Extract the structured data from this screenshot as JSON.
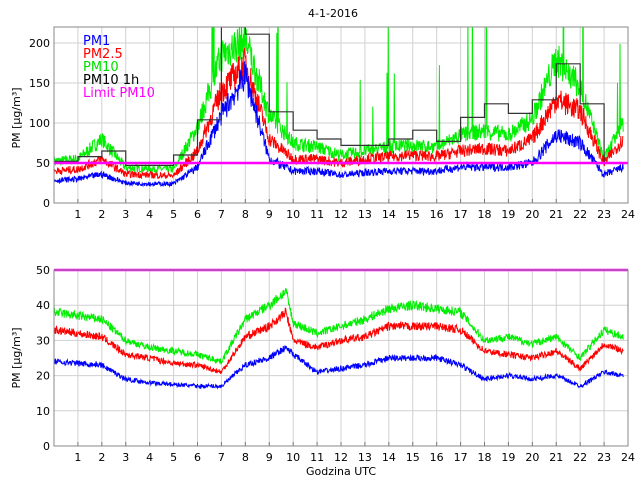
{
  "chart_data": [
    {
      "type": "line",
      "title": "4-1-2016",
      "xlabel": "",
      "ylabel": "PM [µg/m³]",
      "xlim": [
        0,
        24
      ],
      "ylim": [
        0,
        220
      ],
      "xticks": [
        1,
        2,
        3,
        4,
        5,
        6,
        7,
        8,
        9,
        10,
        11,
        12,
        13,
        14,
        15,
        16,
        17,
        18,
        19,
        20,
        21,
        22,
        23,
        24
      ],
      "yticks": [
        0,
        50,
        100,
        150,
        200
      ],
      "grid": true,
      "legend_position": "top-left",
      "legend": [
        "PM1",
        "PM2.5",
        "PM10",
        "PM10 1h",
        "Limit PM10"
      ],
      "colors": {
        "PM1": "#0000ff",
        "PM2.5": "#ff0000",
        "PM10": "#00ee00",
        "PM10 1h": "#000000",
        "Limit PM10": "#ff00ff"
      },
      "hours": [
        0,
        1,
        2,
        3,
        4,
        5,
        6,
        7,
        8,
        9,
        10,
        11,
        12,
        13,
        14,
        15,
        16,
        17,
        18,
        19,
        20,
        21,
        22,
        23,
        23.8
      ],
      "series": [
        {
          "name": "PM1",
          "values": [
            28,
            30,
            36,
            25,
            24,
            24,
            45,
            110,
            160,
            55,
            40,
            40,
            35,
            38,
            40,
            40,
            40,
            45,
            45,
            45,
            50,
            85,
            75,
            35,
            45
          ]
        },
        {
          "name": "PM2.5",
          "values": [
            40,
            42,
            55,
            36,
            35,
            34,
            65,
            140,
            175,
            80,
            55,
            55,
            50,
            55,
            58,
            60,
            58,
            65,
            68,
            65,
            80,
            130,
            115,
            50,
            80
          ]
        },
        {
          "name": "PM10",
          "values": [
            52,
            55,
            80,
            44,
            43,
            42,
            95,
            185,
            205,
            110,
            75,
            70,
            60,
            65,
            70,
            72,
            70,
            85,
            90,
            85,
            105,
            180,
            145,
            55,
            100
          ]
        }
      ],
      "hourly_PM10_1h": [
        52,
        58,
        65,
        47,
        47,
        60,
        104,
        220,
        211,
        114,
        91,
        80,
        72,
        72,
        80,
        91,
        77,
        107,
        124,
        112,
        129,
        174,
        124,
        50
      ],
      "limit_PM10": 50
    },
    {
      "type": "line",
      "title": "",
      "xlabel": "Godzina UTC",
      "ylabel": "PM [µg/m³]",
      "xlim": [
        0,
        24
      ],
      "ylim": [
        0,
        50
      ],
      "xticks": [
        1,
        2,
        3,
        4,
        5,
        6,
        7,
        8,
        9,
        10,
        11,
        12,
        13,
        14,
        15,
        16,
        17,
        18,
        19,
        20,
        21,
        22,
        23,
        24
      ],
      "yticks": [
        0,
        10,
        20,
        30,
        40,
        50
      ],
      "grid": true,
      "hours": [
        0,
        1,
        2,
        3,
        4,
        5,
        6,
        7,
        8,
        9,
        9.7,
        10,
        11,
        12,
        13,
        14,
        15,
        16,
        17,
        18,
        19,
        20,
        21,
        22,
        23,
        23.8
      ],
      "series": [
        {
          "name": "PM1",
          "values": [
            24,
            23.5,
            23,
            19,
            18,
            17.5,
            17,
            17,
            23,
            25,
            28,
            26,
            21,
            22,
            23,
            25,
            25,
            25,
            23,
            19,
            20,
            19,
            20,
            17,
            21,
            20
          ]
        },
        {
          "name": "PM2.5",
          "values": [
            33,
            32,
            31,
            26,
            25,
            23.5,
            23,
            21,
            31,
            34,
            38,
            30,
            28,
            30,
            31,
            34,
            34,
            34,
            33,
            27,
            26,
            25,
            27,
            22,
            29,
            27
          ]
        },
        {
          "name": "PM10",
          "values": [
            38,
            37,
            36,
            30,
            28,
            27,
            26,
            24,
            36,
            40,
            44,
            35,
            32,
            34,
            36,
            39,
            40,
            39,
            38,
            30,
            31,
            29,
            31,
            25,
            33,
            31
          ]
        }
      ],
      "limit_PM10": 50
    }
  ]
}
